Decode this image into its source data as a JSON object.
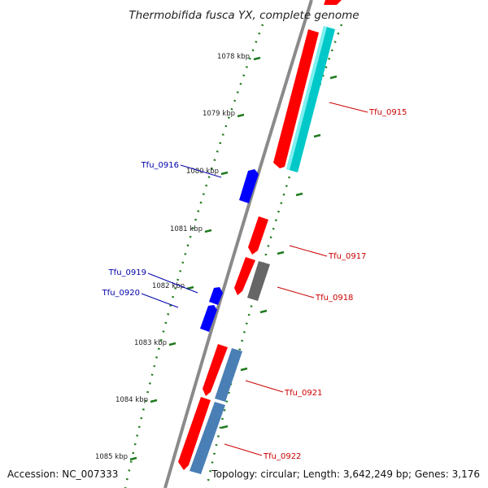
{
  "title": "Thermobifida fusca YX, complete genome",
  "footer": {
    "accession": "Accession: NC_007333",
    "topology": "Topology: circular; Length: 3,642,249 bp; Genes: 3,176"
  },
  "ticks": [
    {
      "label": "1078 kbp"
    },
    {
      "label": "1079 kbp"
    },
    {
      "label": "1080 kbp"
    },
    {
      "label": "1081 kbp"
    },
    {
      "label": "1082 kbp"
    },
    {
      "label": "1083 kbp"
    },
    {
      "label": "1084 kbp"
    },
    {
      "label": "1085 kbp"
    }
  ],
  "colors": {
    "backbone": "#888888",
    "forward_gene": "#ff0000",
    "reverse_gene": "#0000ff",
    "highlight_cyan": "#00cccc",
    "highlight_steel": "#4a7fb5",
    "highlight_gray": "#666666",
    "tick": "#1f7a1f",
    "forward_label": "#cc0000",
    "reverse_label": "#0000aa"
  },
  "genes": [
    {
      "label": "Tfu_0915",
      "strand": "forward"
    },
    {
      "label": "Tfu_0916",
      "strand": "reverse"
    },
    {
      "label": "Tfu_0917",
      "strand": "forward"
    },
    {
      "label": "Tfu_0918",
      "strand": "forward"
    },
    {
      "label": "Tfu_0919",
      "strand": "reverse"
    },
    {
      "label": "Tfu_0920",
      "strand": "reverse"
    },
    {
      "label": "Tfu_0921",
      "strand": "forward"
    },
    {
      "label": "Tfu_0922",
      "strand": "forward"
    }
  ]
}
